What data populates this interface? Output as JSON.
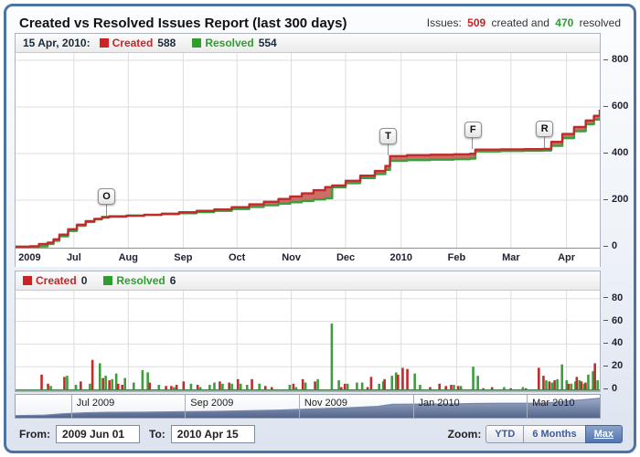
{
  "header": {
    "title": "Created vs Resolved Issues Report (last 300 days)",
    "issues": {
      "label": "Issues:",
      "created_count": "509",
      "created_text": "created and",
      "resolved_count": "470",
      "resolved_text": "resolved"
    }
  },
  "colors": {
    "created": "#c02b2b",
    "created_fill": "#c2473e",
    "resolved": "#3c9e3c",
    "grid": "#dddddd",
    "axis": "#8a8f98",
    "bar_axis": "#4e7d4e",
    "scrub_fill_top": "#9aa9c7",
    "scrub_fill_bottom": "#55668b",
    "scrub_stroke": "#7486aa"
  },
  "top_chart": {
    "legend": {
      "date": "15 Apr, 2010:",
      "created_label": "Created",
      "created_value": "588",
      "resolved_label": "Resolved",
      "resolved_value": "554"
    }
  },
  "bottom_chart": {
    "legend": {
      "created_label": "Created",
      "created_value": "0",
      "resolved_label": "Resolved",
      "resolved_value": "6"
    }
  },
  "scrubber": {
    "labels": [
      {
        "text": "Jul 2009",
        "f": 0.095
      },
      {
        "text": "Sep 2009",
        "f": 0.29
      },
      {
        "text": "Nov 2009",
        "f": 0.485
      },
      {
        "text": "Jan 2010",
        "f": 0.68
      },
      {
        "text": "Mar 2010",
        "f": 0.875
      }
    ]
  },
  "footer": {
    "from_label": "From:",
    "from_value": "2009 Jun 01",
    "to_label": "To:",
    "to_value": "2010 Apr 15",
    "zoom_label": "Zoom:",
    "buttons": [
      {
        "label": "YTD",
        "active": false
      },
      {
        "label": "6 Months",
        "active": false
      },
      {
        "label": "Max",
        "active": true
      }
    ]
  },
  "chart_data": [
    {
      "type": "area",
      "title": "Cumulative created vs resolved issues (1 Jun 2009 - 15 Apr 2010)",
      "legend_position": "top-left",
      "grid": true,
      "ylim": [
        0,
        800
      ],
      "y_ticks": [
        0,
        200,
        400,
        600,
        800
      ],
      "x_ticks": [
        {
          "label": "2009",
          "f": 0.024
        },
        {
          "label": "Jul",
          "f": 0.1
        },
        {
          "label": "Aug",
          "f": 0.193
        },
        {
          "label": "Sep",
          "f": 0.287
        },
        {
          "label": "Oct",
          "f": 0.379
        },
        {
          "label": "Nov",
          "f": 0.472
        },
        {
          "label": "Dec",
          "f": 0.565
        },
        {
          "label": "2010",
          "f": 0.66
        },
        {
          "label": "Feb",
          "f": 0.755
        },
        {
          "label": "Mar",
          "f": 0.848
        },
        {
          "label": "Apr",
          "f": 0.943
        }
      ],
      "series": [
        {
          "name": "Created",
          "final": 588
        },
        {
          "name": "Resolved",
          "final": 554
        }
      ],
      "points": [
        [
          0.0,
          0,
          0
        ],
        [
          0.025,
          2,
          0
        ],
        [
          0.04,
          12,
          2
        ],
        [
          0.055,
          18,
          12
        ],
        [
          0.065,
          32,
          26
        ],
        [
          0.075,
          52,
          45
        ],
        [
          0.09,
          75,
          68
        ],
        [
          0.105,
          95,
          90
        ],
        [
          0.12,
          110,
          106
        ],
        [
          0.135,
          120,
          118
        ],
        [
          0.148,
          126,
          128
        ],
        [
          0.16,
          129,
          131
        ],
        [
          0.19,
          133,
          134
        ],
        [
          0.22,
          137,
          137
        ],
        [
          0.25,
          142,
          140
        ],
        [
          0.28,
          148,
          144
        ],
        [
          0.31,
          154,
          149
        ],
        [
          0.34,
          160,
          154
        ],
        [
          0.37,
          170,
          162
        ],
        [
          0.4,
          182,
          171
        ],
        [
          0.425,
          193,
          178
        ],
        [
          0.45,
          205,
          185
        ],
        [
          0.47,
          216,
          191
        ],
        [
          0.49,
          229,
          197
        ],
        [
          0.51,
          243,
          203
        ],
        [
          0.53,
          256,
          208
        ],
        [
          0.542,
          263,
          255
        ],
        [
          0.565,
          283,
          273
        ],
        [
          0.59,
          305,
          295
        ],
        [
          0.615,
          325,
          312
        ],
        [
          0.633,
          347,
          330
        ],
        [
          0.641,
          389,
          369
        ],
        [
          0.67,
          393,
          372
        ],
        [
          0.71,
          395,
          374
        ],
        [
          0.75,
          397,
          376
        ],
        [
          0.778,
          399,
          378
        ],
        [
          0.787,
          417,
          409
        ],
        [
          0.83,
          418,
          411
        ],
        [
          0.87,
          419,
          412
        ],
        [
          0.903,
          420,
          413
        ],
        [
          0.917,
          450,
          433
        ],
        [
          0.936,
          484,
          466
        ],
        [
          0.956,
          514,
          496
        ],
        [
          0.976,
          542,
          526
        ],
        [
          0.99,
          562,
          546
        ],
        [
          1.0,
          588,
          554
        ]
      ],
      "markers": [
        {
          "label": "O",
          "f": 0.155,
          "v": 131
        },
        {
          "label": "T",
          "f": 0.637,
          "v": 390
        },
        {
          "label": "F",
          "f": 0.782,
          "v": 417
        },
        {
          "label": "R",
          "f": 0.905,
          "v": 420
        }
      ]
    },
    {
      "type": "bar",
      "title": "Issues created vs resolved per period",
      "grid": true,
      "ylim": [
        0,
        80
      ],
      "y_ticks": [
        0,
        20,
        40,
        60,
        80
      ],
      "series": [
        {
          "name": "Created"
        },
        {
          "name": "Resolved"
        }
      ],
      "bars": [
        [
          0.047,
          13,
          0
        ],
        [
          0.058,
          5,
          3
        ],
        [
          0.086,
          11,
          12
        ],
        [
          0.101,
          0,
          4
        ],
        [
          0.114,
          7,
          0
        ],
        [
          0.125,
          0,
          5
        ],
        [
          0.134,
          26,
          0
        ],
        [
          0.142,
          0,
          23
        ],
        [
          0.152,
          10,
          12
        ],
        [
          0.163,
          8,
          9
        ],
        [
          0.17,
          0,
          14
        ],
        [
          0.178,
          5,
          0
        ],
        [
          0.185,
          4,
          10
        ],
        [
          0.2,
          0,
          6
        ],
        [
          0.215,
          0,
          17
        ],
        [
          0.224,
          0,
          15
        ],
        [
          0.232,
          6,
          0
        ],
        [
          0.243,
          0,
          4
        ],
        [
          0.26,
          3,
          0
        ],
        [
          0.269,
          3,
          2
        ],
        [
          0.278,
          4,
          0
        ],
        [
          0.29,
          7,
          0
        ],
        [
          0.298,
          0,
          5
        ],
        [
          0.314,
          4,
          2
        ],
        [
          0.33,
          0,
          4
        ],
        [
          0.338,
          0,
          6
        ],
        [
          0.352,
          7,
          5
        ],
        [
          0.368,
          6,
          5
        ],
        [
          0.383,
          9,
          5
        ],
        [
          0.394,
          0,
          4
        ],
        [
          0.407,
          9,
          0
        ],
        [
          0.415,
          0,
          5
        ],
        [
          0.43,
          3,
          0
        ],
        [
          0.441,
          2,
          0
        ],
        [
          0.467,
          0,
          4
        ],
        [
          0.478,
          5,
          2
        ],
        [
          0.494,
          9,
          6
        ],
        [
          0.515,
          7,
          9
        ],
        [
          0.539,
          0,
          58
        ],
        [
          0.551,
          0,
          8
        ],
        [
          0.56,
          2,
          0
        ],
        [
          0.566,
          5,
          5
        ],
        [
          0.582,
          0,
          6
        ],
        [
          0.591,
          0,
          6
        ],
        [
          0.605,
          2,
          0
        ],
        [
          0.611,
          11,
          0
        ],
        [
          0.62,
          0,
          5
        ],
        [
          0.627,
          0,
          7
        ],
        [
          0.634,
          9,
          0
        ],
        [
          0.642,
          0,
          12
        ],
        [
          0.649,
          0,
          15
        ],
        [
          0.657,
          13,
          0
        ],
        [
          0.665,
          19,
          0
        ],
        [
          0.673,
          18,
          0
        ],
        [
          0.681,
          0,
          14
        ],
        [
          0.69,
          0,
          4
        ],
        [
          0.712,
          2,
          0
        ],
        [
          0.728,
          5,
          0
        ],
        [
          0.739,
          3,
          0
        ],
        [
          0.748,
          4,
          4
        ],
        [
          0.76,
          3,
          3
        ],
        [
          0.781,
          0,
          20
        ],
        [
          0.789,
          0,
          12
        ],
        [
          0.803,
          1,
          0
        ],
        [
          0.818,
          2,
          0
        ],
        [
          0.834,
          0,
          2
        ],
        [
          0.85,
          1,
          0
        ],
        [
          0.866,
          0,
          2
        ],
        [
          0.876,
          1,
          0
        ],
        [
          0.898,
          19,
          0
        ],
        [
          0.906,
          12,
          8
        ],
        [
          0.916,
          7,
          6
        ],
        [
          0.925,
          8,
          9
        ],
        [
          0.933,
          0,
          22
        ],
        [
          0.941,
          0,
          8
        ],
        [
          0.949,
          5,
          5
        ],
        [
          0.956,
          0,
          7
        ],
        [
          0.963,
          11,
          8
        ],
        [
          0.971,
          7,
          5
        ],
        [
          0.978,
          6,
          13
        ],
        [
          0.986,
          0,
          16
        ],
        [
          0.994,
          23,
          8
        ]
      ]
    },
    {
      "type": "area",
      "title": "Timeline overview (scrubber)",
      "points": [
        [
          0.0,
          0.06
        ],
        [
          0.05,
          0.08
        ],
        [
          0.08,
          0.15
        ],
        [
          0.12,
          0.2
        ],
        [
          0.16,
          0.22
        ],
        [
          0.22,
          0.23
        ],
        [
          0.28,
          0.25
        ],
        [
          0.34,
          0.27
        ],
        [
          0.4,
          0.3
        ],
        [
          0.45,
          0.33
        ],
        [
          0.5,
          0.38
        ],
        [
          0.54,
          0.42
        ],
        [
          0.58,
          0.46
        ],
        [
          0.62,
          0.52
        ],
        [
          0.645,
          0.62
        ],
        [
          0.7,
          0.63
        ],
        [
          0.75,
          0.64
        ],
        [
          0.785,
          0.66
        ],
        [
          0.83,
          0.67
        ],
        [
          0.87,
          0.67
        ],
        [
          0.905,
          0.68
        ],
        [
          0.93,
          0.74
        ],
        [
          0.96,
          0.82
        ],
        [
          1.0,
          0.92
        ]
      ]
    }
  ]
}
